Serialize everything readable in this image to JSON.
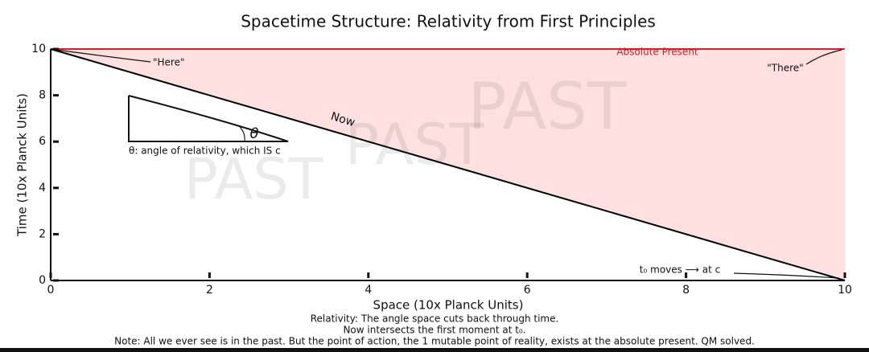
{
  "chart_data": {
    "type": "line",
    "title": "Spacetime Structure: Relativity from First Principles",
    "xlabel": "Space (10x Planck Units)",
    "ylabel": "Time (10x Planck Units)",
    "x": [
      0,
      10
    ],
    "series": [
      {
        "name": "Now",
        "color": "#000000",
        "values": [
          10,
          0
        ]
      }
    ],
    "fill_color": "#ffe0e0",
    "present_color": "#d0202a",
    "xlim": [
      0,
      10
    ],
    "ylim": [
      0,
      10
    ],
    "xticks": [
      0,
      2,
      4,
      6,
      8,
      10
    ],
    "yticks": [
      0,
      2,
      4,
      6,
      8,
      10
    ],
    "annotations": [
      "\"Here\"",
      "\"There\"",
      "Absolute Present",
      "PAST",
      "PAST",
      "PAST",
      "θ",
      "θ: angle of relativity, which IS c",
      "t₀ moves ⟶ at c"
    ],
    "notes": [
      "Relativity: The angle space cuts back through time.",
      "Now intersects the first moment at t₀.",
      "Note: All we ever see is in the past. But the point of action, the 1 mutable point of reality, exists at the absolute present. QM solved."
    ]
  }
}
